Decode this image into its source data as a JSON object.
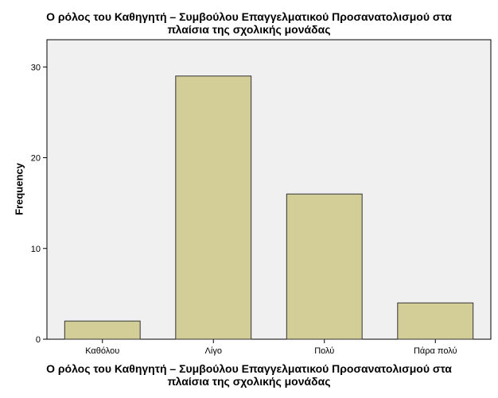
{
  "chart_data": {
    "type": "bar",
    "title_lines": [
      "Ο ρόλος του Καθηγητή – Συμβούλου Επαγγελματικού Προσανατολισμού στα",
      "πλαίσια της σχολικής μονάδας"
    ],
    "xlabel_lines": [
      "Ο ρόλος του Καθηγητή – Συμβούλου Επαγγελματικού Προσανατολισμού στα",
      "πλαίσια της σχολικής μονάδας"
    ],
    "ylabel": "Frequency",
    "categories": [
      "Καθόλου",
      "Λίγο",
      "Πολύ",
      "Πάρα πολύ"
    ],
    "values": [
      2,
      29,
      16,
      4
    ],
    "ylim": [
      0,
      33
    ],
    "yticks": [
      0,
      10,
      20,
      30
    ],
    "grid": false,
    "colors": {
      "bar": "#d3ce98",
      "bar_stroke": "#333333",
      "plot_bg": "#f0f0f0",
      "axis": "#000000"
    }
  }
}
